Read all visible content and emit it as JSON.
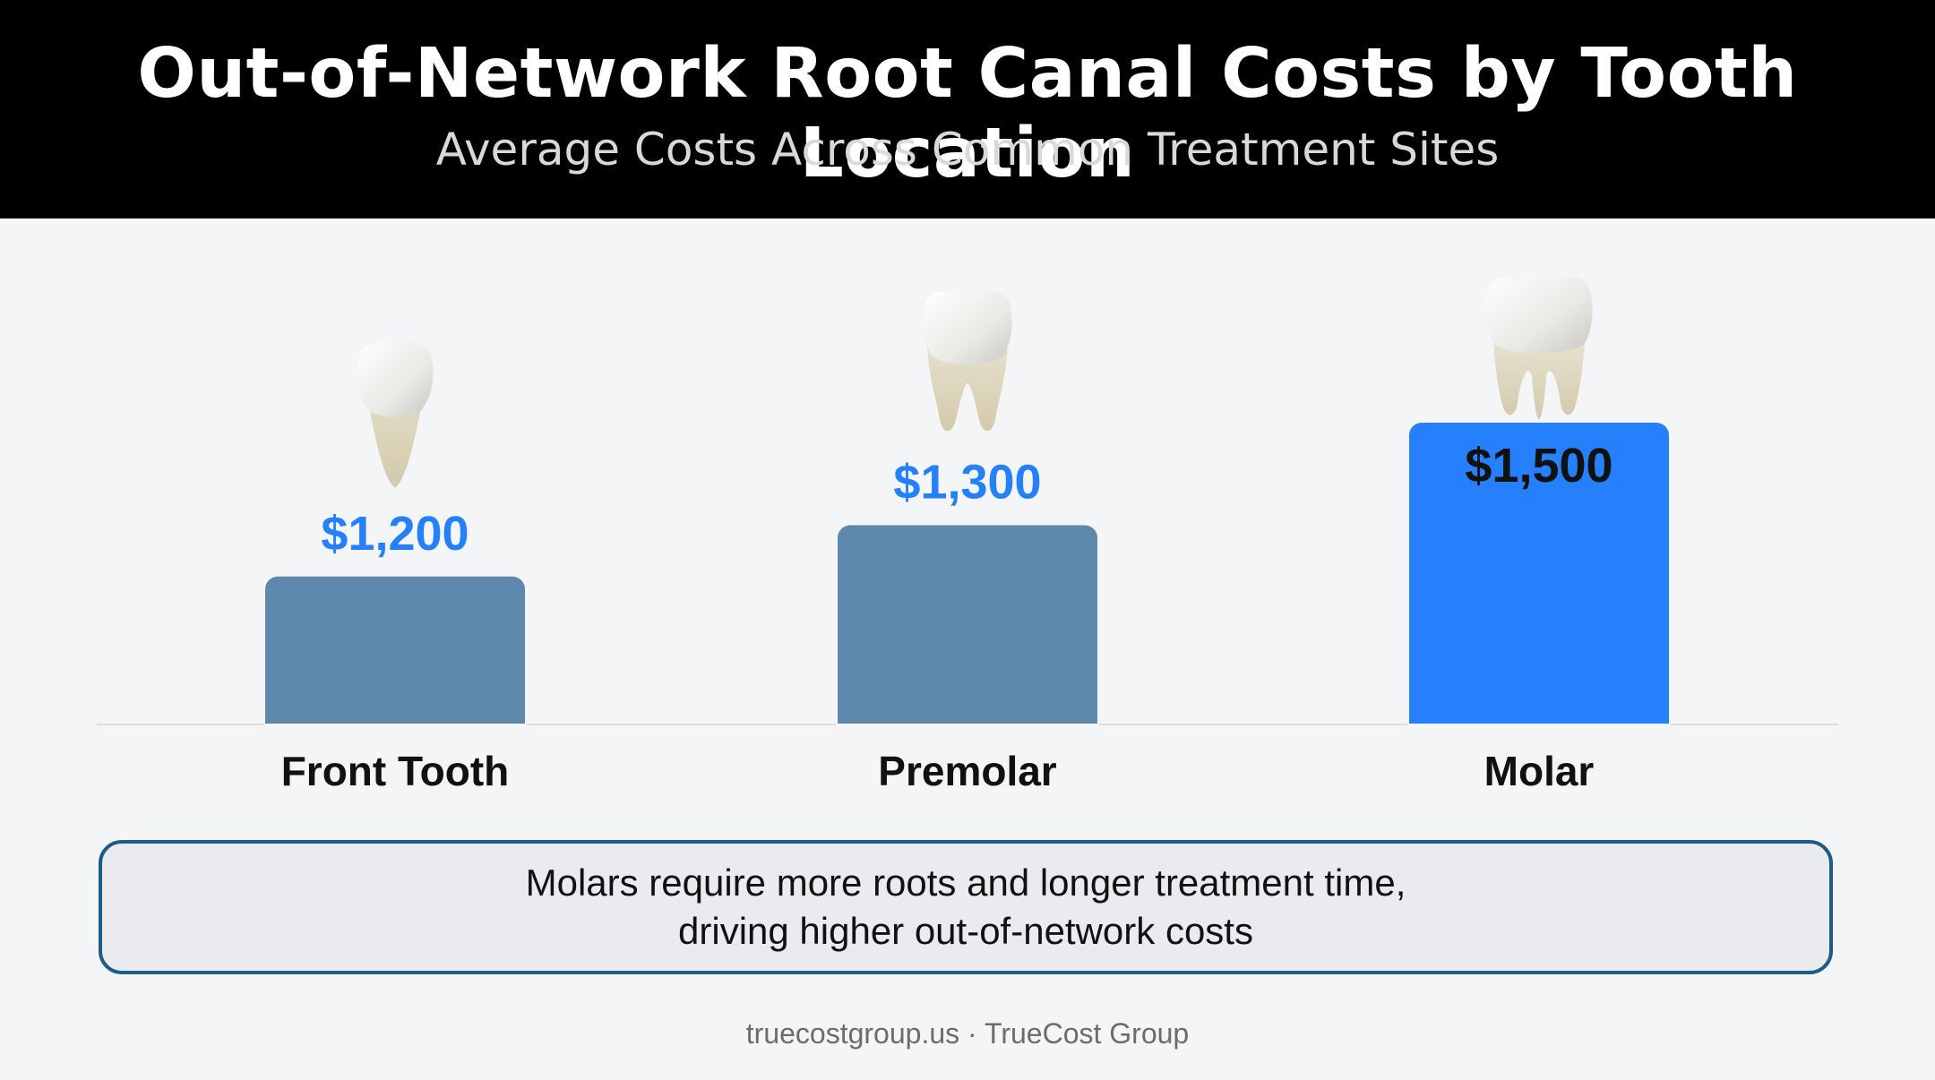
{
  "header": {
    "title": "Out-of-Network Root Canal Costs by Tooth Location",
    "subtitle": "Average Costs Across Common Treatment Sites"
  },
  "chart_data": {
    "type": "bar",
    "categories": [
      "Front Tooth",
      "Premolar",
      "Molar"
    ],
    "values": [
      1200,
      1300,
      1500
    ],
    "value_labels": [
      "$1,200",
      "$1,300",
      "$1,500"
    ],
    "title": "Out-of-Network Root Canal Costs by Tooth Location",
    "subtitle": "Average Costs Across Common Treatment Sites",
    "xlabel": "",
    "ylabel": "",
    "ylim": [
      1100,
      1500
    ],
    "grid": false,
    "legend": "none",
    "icons": [
      "incisor-tooth-icon",
      "premolar-tooth-icon",
      "molar-tooth-icon"
    ],
    "colors": {
      "bar": "#5f88ad",
      "highlight_bar": "#2680fb",
      "value_label": "#2680fb",
      "highlight_value_label": "#111111",
      "category_label": "#111111"
    },
    "highlight_index": 2
  },
  "callout": {
    "line1": "Molars require more roots and longer treatment time,",
    "line2": "driving higher out-of-network costs"
  },
  "footer": {
    "text": "truecostgroup.us · TrueCost Group"
  }
}
